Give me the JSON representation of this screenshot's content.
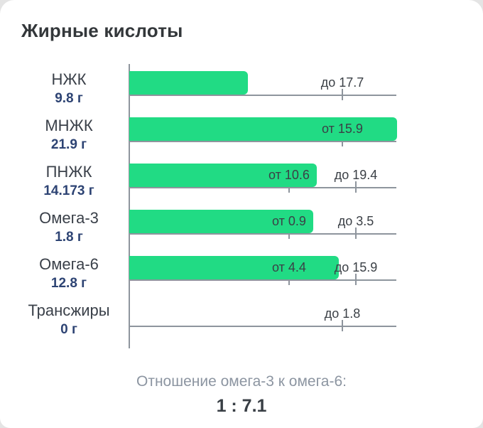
{
  "chart_data": {
    "type": "bar",
    "orientation": "horizontal",
    "title": "Жирные кислоты",
    "unit": "г",
    "bar_color": "#21db84",
    "axis_color": "#8e959d",
    "value_color": "#2d4373",
    "rows": [
      {
        "label": "НЖК",
        "value_display": "9.8 г",
        "value": 9.8,
        "norm": {
          "min": null,
          "max": 17.7
        },
        "norm_labels": [
          {
            "text": "до 17.7",
            "type": "max"
          }
        ]
      },
      {
        "label": "МНЖК",
        "value_display": "21.9 г",
        "value": 21.9,
        "norm": {
          "min": 15.9,
          "max": null
        },
        "norm_labels": [
          {
            "text": "от 15.9",
            "type": "min"
          }
        ]
      },
      {
        "label": "ПНЖК",
        "value_display": "14.173 г",
        "value": 14.173,
        "norm": {
          "min": 10.6,
          "max": 19.4
        },
        "norm_labels": [
          {
            "text": "от 10.6",
            "type": "min"
          },
          {
            "text": "до 19.4",
            "type": "max"
          }
        ]
      },
      {
        "label": "Омега-3",
        "value_display": "1.8 г",
        "value": 1.8,
        "norm": {
          "min": 0.9,
          "max": 3.5
        },
        "norm_labels": [
          {
            "text": "от 0.9",
            "type": "min"
          },
          {
            "text": "до 3.5",
            "type": "max"
          }
        ]
      },
      {
        "label": "Омега-6",
        "value_display": "12.8 г",
        "value": 12.8,
        "norm": {
          "min": 4.4,
          "max": 15.9
        },
        "norm_labels": [
          {
            "text": "от 4.4",
            "type": "min"
          },
          {
            "text": "до 15.9",
            "type": "max"
          }
        ]
      },
      {
        "label": "Трансжиры",
        "value_display": "0 г",
        "value": 0,
        "norm": {
          "min": null,
          "max": 1.8
        },
        "norm_labels": [
          {
            "text": "до 1.8",
            "type": "max"
          }
        ]
      }
    ],
    "footer_caption": "Отношение омега-3 к омега-6:",
    "footer_ratio": "1 : 7.1"
  }
}
